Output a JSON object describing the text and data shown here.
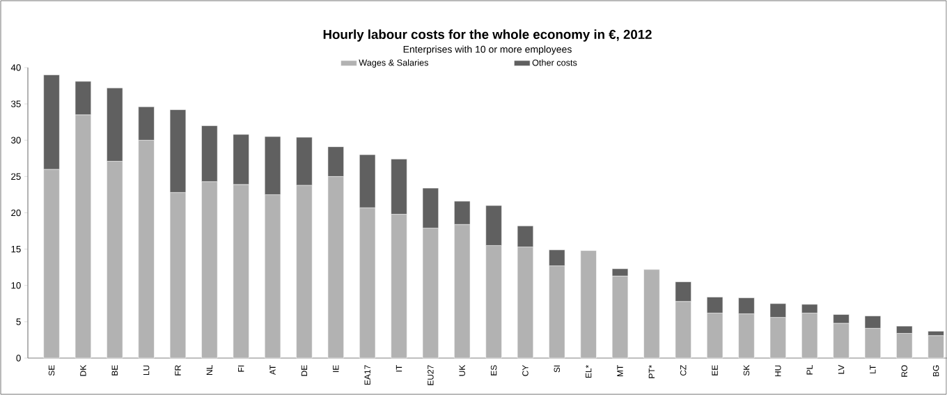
{
  "chart_data": {
    "type": "bar",
    "stacked": true,
    "title": "Hourly labour costs for the whole economy in €, 2012",
    "subtitle": "Enterprises with 10 or more employees",
    "categories": [
      "SE",
      "DK",
      "BE",
      "LU",
      "FR",
      "NL",
      "FI",
      "AT",
      "DE",
      "IE",
      "EA17",
      "IT",
      "EU27",
      "UK",
      "ES",
      "CY",
      "SI",
      "EL*",
      "MT",
      "PT*",
      "CZ",
      "EE",
      "SK",
      "HU",
      "PL",
      "LV",
      "LT",
      "RO",
      "BG"
    ],
    "series": [
      {
        "name": "Wages & Salaries",
        "color": "#b2b2b2",
        "values": [
          26.0,
          33.5,
          27.1,
          30.0,
          22.8,
          24.3,
          23.9,
          22.5,
          23.8,
          25.0,
          20.7,
          19.8,
          17.9,
          18.4,
          15.5,
          15.3,
          12.7,
          14.8,
          11.3,
          12.2,
          7.8,
          6.2,
          6.1,
          5.6,
          6.2,
          4.8,
          4.1,
          3.4,
          3.1
        ]
      },
      {
        "name": "Other costs",
        "color": "#606060",
        "values": [
          13.0,
          4.6,
          10.1,
          4.6,
          11.4,
          7.7,
          6.9,
          8.0,
          6.6,
          4.1,
          7.3,
          7.6,
          5.5,
          3.2,
          5.5,
          2.9,
          2.2,
          null,
          1.0,
          null,
          2.7,
          2.2,
          2.2,
          1.9,
          1.2,
          1.2,
          1.7,
          1.0,
          0.6
        ]
      }
    ],
    "ylim": [
      0,
      40
    ],
    "yticks": [
      0,
      5,
      10,
      15,
      20,
      25,
      30,
      35,
      40
    ],
    "grid": false,
    "legend": "top"
  }
}
